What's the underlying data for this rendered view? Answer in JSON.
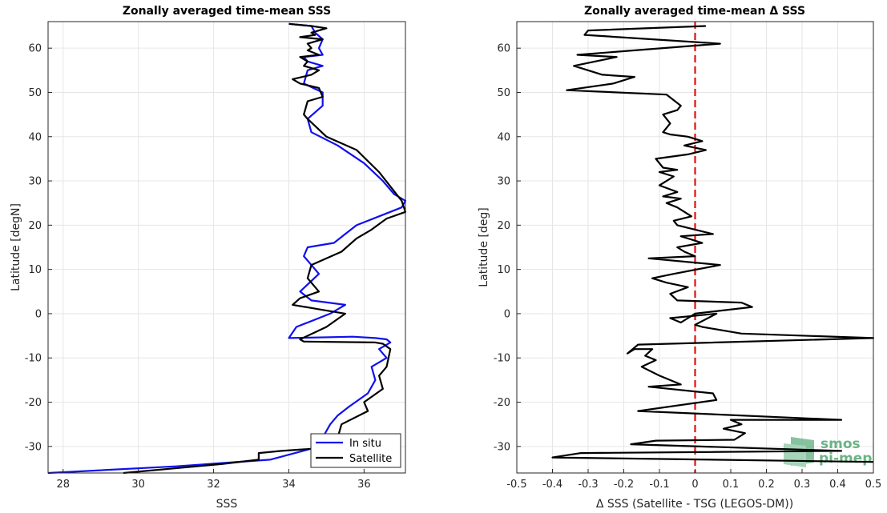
{
  "chart_data": [
    {
      "type": "line",
      "title": "Zonally averaged time-mean SSS",
      "xlabel": "SSS",
      "ylabel": "Latitude [degN]",
      "xlim": [
        27.6,
        37.1
      ],
      "ylim": [
        -36,
        66
      ],
      "xticks": [
        28,
        30,
        32,
        34,
        36
      ],
      "yticks": [
        -30,
        -20,
        -10,
        0,
        10,
        20,
        30,
        40,
        50,
        60
      ],
      "grid": true,
      "legend": "bottom-right",
      "series": [
        {
          "name": "In situ",
          "color": "#1010ee",
          "x": [
            27.6,
            31.0,
            33.5,
            34.6,
            34.9,
            35.1,
            35.3,
            35.6,
            36.1,
            36.3,
            36.2,
            36.6,
            36.4,
            36.7,
            36.6,
            36.3,
            35.7,
            34.0,
            34.2,
            35.1,
            35.5,
            34.6,
            34.3,
            34.8,
            34.4,
            34.5,
            35.2,
            35.5,
            35.8,
            36.4,
            37.0,
            37.1,
            36.8,
            36.5,
            36.0,
            35.3,
            34.6,
            34.5,
            34.9,
            34.9,
            34.4,
            34.5,
            34.9,
            34.5,
            34.4,
            34.9,
            34.8,
            34.9,
            34.7,
            34.6,
            34.0
          ],
          "y": [
            -36.0,
            -34.5,
            -33.0,
            -30.5,
            -28.0,
            -25.0,
            -23.0,
            -21.0,
            -18.0,
            -15.0,
            -12.0,
            -10.0,
            -8.0,
            -6.5,
            -5.8,
            -5.5,
            -5.2,
            -5.5,
            -3.0,
            0.0,
            2.0,
            3.0,
            5.0,
            9.0,
            13.0,
            15.0,
            16.0,
            18.0,
            20.0,
            22.0,
            24.0,
            25.5,
            27.0,
            30.0,
            34.0,
            38.0,
            41.0,
            44.0,
            47.0,
            50.0,
            52.0,
            55.0,
            56.0,
            57.0,
            58.0,
            58.5,
            60.0,
            62.0,
            63.5,
            65.0,
            65.5
          ]
        },
        {
          "name": "Satellite",
          "color": "#000000",
          "x": [
            29.6,
            32.2,
            33.2,
            33.2,
            33.8,
            35.5,
            35.3,
            35.4,
            36.1,
            36.0,
            36.5,
            36.4,
            36.6,
            36.7,
            36.5,
            36.3,
            34.4,
            34.3,
            35.0,
            35.5,
            34.8,
            34.1,
            34.3,
            34.8,
            34.5,
            34.6,
            35.4,
            35.8,
            36.2,
            36.6,
            37.1,
            37.0,
            36.4,
            35.8,
            35.0,
            34.5,
            34.4,
            34.5,
            34.9,
            34.8,
            34.3,
            34.1,
            34.6,
            34.8,
            34.4,
            34.5,
            34.3,
            34.8,
            34.5,
            34.6,
            34.5,
            34.9,
            34.3,
            34.7,
            34.6,
            34.8,
            35.0,
            34.6,
            34.0
          ],
          "y": [
            -36.0,
            -34.0,
            -33.0,
            -31.5,
            -31.0,
            -30.0,
            -28.0,
            -25.0,
            -22.0,
            -20.0,
            -17.0,
            -14.0,
            -12.0,
            -8.0,
            -6.8,
            -6.5,
            -6.3,
            -5.8,
            -3.0,
            0.0,
            1.0,
            2.0,
            3.5,
            5.0,
            8.0,
            11.0,
            14.0,
            17.0,
            19.0,
            21.5,
            23.0,
            25.5,
            32.0,
            37.0,
            40.0,
            44.0,
            45.0,
            48.0,
            49.0,
            51.0,
            52.0,
            53.0,
            54.0,
            55.0,
            56.0,
            57.0,
            58.0,
            58.5,
            59.5,
            60.0,
            61.0,
            62.0,
            62.5,
            63.0,
            63.5,
            64.0,
            64.5,
            65.0,
            65.5
          ]
        }
      ]
    },
    {
      "type": "line",
      "title": "Zonally averaged time-mean Δ SSS",
      "xlabel": "Δ SSS (Satellite - TSG (LEGOS-DM))",
      "ylabel": "Latitude [deg]",
      "xlim": [
        -0.5,
        0.5
      ],
      "ylim": [
        -36,
        66
      ],
      "xticks": [
        -0.5,
        -0.4,
        -0.3,
        -0.2,
        -0.1,
        0,
        0.1,
        0.2,
        0.3,
        0.4,
        0.5
      ],
      "yticks": [
        -30,
        -20,
        -10,
        0,
        10,
        20,
        30,
        40,
        50,
        60
      ],
      "grid": true,
      "reference_line": {
        "x": 0,
        "color": "#e01010",
        "style": "dashed"
      },
      "series": [
        {
          "color": "#000000",
          "x": [
            0.5,
            -0.4,
            -0.32,
            0.41,
            -0.18,
            -0.11,
            0.11,
            0.14,
            0.08,
            0.13,
            0.1,
            0.41,
            -0.16,
            0.06,
            0.05,
            -0.13,
            -0.04,
            -0.1,
            -0.15,
            -0.11,
            -0.14,
            -0.12,
            -0.17,
            -0.19,
            -0.16,
            0.5,
            0.5,
            0.13,
            0.02,
            0.0,
            0.06,
            -0.07,
            -0.04,
            0.0,
            0.16,
            0.13,
            -0.05,
            -0.07,
            -0.02,
            -0.08,
            -0.12,
            -0.06,
            0.07,
            -0.13,
            0.0,
            -0.03,
            -0.05,
            0.02,
            -0.04,
            0.05,
            0.0,
            -0.05,
            -0.06,
            -0.01,
            -0.05,
            -0.08,
            -0.04,
            -0.09,
            -0.05,
            -0.1,
            -0.08,
            -0.06,
            -0.1,
            -0.05,
            -0.09,
            -0.11,
            -0.02,
            0.03,
            -0.03,
            0.02,
            -0.02,
            -0.07,
            -0.09,
            -0.07,
            -0.09,
            -0.05,
            -0.04,
            -0.08,
            -0.36,
            -0.23,
            -0.17,
            -0.26,
            -0.34,
            -0.22,
            -0.33,
            0.07,
            -0.31,
            -0.3,
            0.03
          ],
          "y": [
            -33.5,
            -32.5,
            -31.5,
            -31.0,
            -29.5,
            -28.7,
            -28.5,
            -27.0,
            -26.0,
            -25.0,
            -24.0,
            -24.0,
            -22.0,
            -19.5,
            -18.0,
            -16.5,
            -16.0,
            -14.0,
            -12.0,
            -10.5,
            -9.5,
            -8.0,
            -8.0,
            -9.0,
            -7.0,
            -5.5,
            -5.5,
            -4.5,
            -3.0,
            -2.5,
            0.0,
            -1.0,
            -2.0,
            0.0,
            1.5,
            2.5,
            3.0,
            4.5,
            6.0,
            7.0,
            8.0,
            9.0,
            11.0,
            12.5,
            13.0,
            14.0,
            15.0,
            16.0,
            17.5,
            18.0,
            19.0,
            20.0,
            21.0,
            22.0,
            24.0,
            25.0,
            26.0,
            26.5,
            27.5,
            29.0,
            30.0,
            31.0,
            32.0,
            32.5,
            33.0,
            35.0,
            36.0,
            37.0,
            38.0,
            39.0,
            40.0,
            40.5,
            41.0,
            43.0,
            45.0,
            46.0,
            47.0,
            49.5,
            50.5,
            52.0,
            53.5,
            54.0,
            56.0,
            58.0,
            58.5,
            61.0,
            63.0,
            64.0,
            65.0
          ]
        }
      ]
    }
  ],
  "legend": {
    "insitu": "In situ",
    "satellite": "Satellite"
  },
  "logo": {
    "line1": "smos",
    "line2": "pi-mep",
    "color": "#3a9a5e"
  }
}
